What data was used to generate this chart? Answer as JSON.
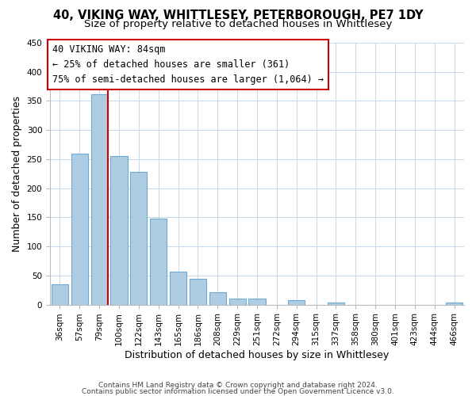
{
  "title": "40, VIKING WAY, WHITTLESEY, PETERBOROUGH, PE7 1DY",
  "subtitle": "Size of property relative to detached houses in Whittlesey",
  "xlabel": "Distribution of detached houses by size in Whittlesey",
  "ylabel": "Number of detached properties",
  "bar_labels": [
    "36sqm",
    "57sqm",
    "79sqm",
    "100sqm",
    "122sqm",
    "143sqm",
    "165sqm",
    "186sqm",
    "208sqm",
    "229sqm",
    "251sqm",
    "272sqm",
    "294sqm",
    "315sqm",
    "337sqm",
    "358sqm",
    "380sqm",
    "401sqm",
    "423sqm",
    "444sqm",
    "466sqm"
  ],
  "bar_values": [
    35,
    260,
    362,
    256,
    228,
    148,
    57,
    45,
    21,
    11,
    11,
    0,
    7,
    0,
    4,
    0,
    0,
    0,
    0,
    0,
    3
  ],
  "bar_color": "#aecde3",
  "bar_edge_color": "#6aaad4",
  "highlight_line_color": "#cc0000",
  "highlight_line_index": 2,
  "annotation_line1": "40 VIKING WAY: 84sqm",
  "annotation_line2": "← 25% of detached houses are smaller (361)",
  "annotation_line3": "75% of semi-detached houses are larger (1,064) →",
  "ylim": [
    0,
    450
  ],
  "yticks": [
    0,
    50,
    100,
    150,
    200,
    250,
    300,
    350,
    400,
    450
  ],
  "footer_line1": "Contains HM Land Registry data © Crown copyright and database right 2024.",
  "footer_line2": "Contains public sector information licensed under the Open Government Licence v3.0.",
  "bg_color": "#ffffff",
  "grid_color": "#c8daea",
  "title_fontsize": 10.5,
  "subtitle_fontsize": 9.5,
  "axis_label_fontsize": 9,
  "tick_fontsize": 7.5,
  "footer_fontsize": 6.5,
  "ann_fontsize": 8.5
}
